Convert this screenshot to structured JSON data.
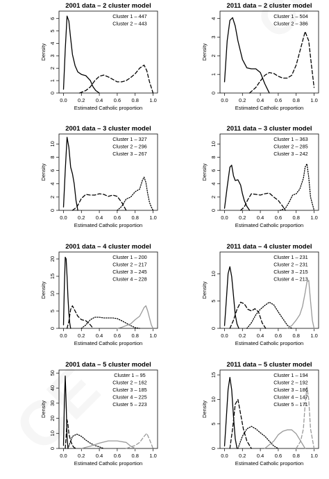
{
  "chart_data": [
    {
      "type": "line",
      "title": "2001 data – 2 cluster model",
      "xlabel": "Estimated Catholic proportion",
      "ylabel": "Density",
      "xlim": [
        -0.05,
        1.05
      ],
      "ylim": [
        0,
        6.6
      ],
      "xticks": [
        0.0,
        0.2,
        0.4,
        0.6,
        0.8,
        1.0
      ],
      "yticks": [
        0,
        1,
        2,
        3,
        4,
        5,
        6
      ],
      "legend_position": "top-right",
      "legend": [
        "Cluster 1 – 447",
        "Cluster 2 – 443"
      ],
      "series": [
        {
          "style": "solid",
          "color": "#000000",
          "x": [
            0.0,
            0.02,
            0.04,
            0.06,
            0.08,
            0.1,
            0.13,
            0.16,
            0.2,
            0.25,
            0.3,
            0.33,
            0.36,
            0.4
          ],
          "y": [
            0.3,
            3.5,
            6.2,
            5.8,
            4.4,
            3.1,
            2.2,
            1.7,
            1.5,
            1.4,
            1.0,
            0.5,
            0.2,
            0.0
          ]
        },
        {
          "style": "dashed",
          "color": "#000000",
          "x": [
            0.18,
            0.25,
            0.3,
            0.35,
            0.4,
            0.45,
            0.5,
            0.55,
            0.6,
            0.65,
            0.7,
            0.75,
            0.8,
            0.85,
            0.9,
            0.93,
            0.96,
            1.0
          ],
          "y": [
            0.0,
            0.2,
            0.5,
            1.0,
            1.35,
            1.45,
            1.3,
            1.1,
            0.9,
            0.9,
            1.0,
            1.25,
            1.55,
            2.0,
            2.25,
            1.8,
            0.9,
            0.0
          ]
        }
      ]
    },
    {
      "type": "line",
      "title": "2011 data – 2 cluster model",
      "xlabel": "Estimated Catholic proportion",
      "ylabel": "Density",
      "xlim": [
        -0.05,
        1.05
      ],
      "ylim": [
        0,
        4.4
      ],
      "xticks": [
        0.0,
        0.2,
        0.4,
        0.6,
        0.8,
        1.0
      ],
      "yticks": [
        0,
        1,
        2,
        3,
        4
      ],
      "legend_position": "top-right",
      "legend": [
        "Cluster 1 – 504",
        "Cluster 2 – 386"
      ],
      "series": [
        {
          "style": "solid",
          "color": "#000000",
          "x": [
            0.0,
            0.03,
            0.06,
            0.09,
            0.12,
            0.15,
            0.2,
            0.25,
            0.3,
            0.35,
            0.4,
            0.45,
            0.5
          ],
          "y": [
            0.6,
            2.8,
            3.9,
            4.05,
            3.6,
            2.8,
            1.8,
            1.35,
            1.3,
            1.3,
            1.1,
            0.5,
            0.0
          ]
        },
        {
          "style": "dashed",
          "color": "#000000",
          "x": [
            0.28,
            0.35,
            0.4,
            0.45,
            0.5,
            0.55,
            0.6,
            0.65,
            0.7,
            0.75,
            0.8,
            0.85,
            0.9,
            0.94,
            0.97,
            1.0
          ],
          "y": [
            0.0,
            0.3,
            0.65,
            0.95,
            1.1,
            1.05,
            0.9,
            0.8,
            0.8,
            0.95,
            1.5,
            2.4,
            3.3,
            2.8,
            1.5,
            0.3
          ]
        }
      ]
    },
    {
      "type": "line",
      "title": "2001 data – 3 cluster model",
      "xlabel": "Estimated Catholic proportion",
      "ylabel": "Density",
      "xlim": [
        -0.05,
        1.05
      ],
      "ylim": [
        0,
        11.5
      ],
      "xticks": [
        0.0,
        0.2,
        0.4,
        0.6,
        0.8,
        1.0
      ],
      "yticks": [
        0,
        2,
        4,
        6,
        8,
        10
      ],
      "legend_position": "top-right",
      "legend": [
        "Cluster 1 – 327",
        "Cluster 2 – 296",
        "Cluster 3 – 267"
      ],
      "series": [
        {
          "style": "solid",
          "color": "#000000",
          "x": [
            0.0,
            0.02,
            0.04,
            0.06,
            0.08,
            0.1,
            0.12,
            0.14,
            0.16
          ],
          "y": [
            0.5,
            6.0,
            11.0,
            9.5,
            6.5,
            5.5,
            4.0,
            1.5,
            0.0
          ]
        },
        {
          "style": "dashed",
          "color": "#000000",
          "x": [
            0.1,
            0.15,
            0.2,
            0.25,
            0.3,
            0.35,
            0.4,
            0.45,
            0.5,
            0.55,
            0.6,
            0.65,
            0.7
          ],
          "y": [
            0.0,
            0.5,
            1.8,
            2.4,
            2.3,
            2.3,
            2.5,
            2.4,
            2.1,
            2.3,
            2.1,
            1.2,
            0.0
          ]
        },
        {
          "style": "dotted",
          "color": "#000000",
          "x": [
            0.6,
            0.65,
            0.7,
            0.75,
            0.8,
            0.85,
            0.88,
            0.9,
            0.92,
            0.94,
            0.96,
            0.98,
            1.0
          ],
          "y": [
            0.0,
            0.6,
            1.7,
            2.0,
            2.8,
            3.2,
            4.5,
            5.0,
            4.2,
            2.5,
            1.2,
            0.5,
            0.0
          ]
        }
      ]
    },
    {
      "type": "line",
      "title": "2011 data – 3 cluster model",
      "xlabel": "Estimated Catholic proportion",
      "ylabel": "Density",
      "xlim": [
        -0.05,
        1.05
      ],
      "ylim": [
        0,
        11.5
      ],
      "xticks": [
        0.0,
        0.2,
        0.4,
        0.6,
        0.8,
        1.0
      ],
      "yticks": [
        0,
        2,
        4,
        6,
        8,
        10
      ],
      "legend_position": "top-right",
      "legend": [
        "Cluster 1 – 363",
        "Cluster 2 – 285",
        "Cluster 3 – 242"
      ],
      "series": [
        {
          "style": "solid",
          "color": "#000000",
          "x": [
            0.0,
            0.03,
            0.06,
            0.08,
            0.1,
            0.12,
            0.15,
            0.18,
            0.2,
            0.22,
            0.25,
            0.28
          ],
          "y": [
            0.3,
            3.5,
            6.5,
            6.8,
            5.2,
            4.5,
            4.6,
            3.8,
            2.5,
            1.5,
            0.6,
            0.0
          ]
        },
        {
          "style": "dashed",
          "color": "#000000",
          "x": [
            0.18,
            0.22,
            0.26,
            0.3,
            0.35,
            0.4,
            0.45,
            0.5,
            0.55,
            0.6,
            0.65,
            0.68
          ],
          "y": [
            0.0,
            0.5,
            1.6,
            2.5,
            2.4,
            2.3,
            2.5,
            2.6,
            2.0,
            1.5,
            0.6,
            0.0
          ]
        },
        {
          "style": "dotted",
          "color": "#000000",
          "x": [
            0.62,
            0.68,
            0.72,
            0.76,
            0.8,
            0.84,
            0.88,
            0.9,
            0.92,
            0.94,
            0.96,
            1.0
          ],
          "y": [
            0.0,
            0.3,
            1.2,
            2.3,
            2.5,
            3.2,
            4.8,
            6.5,
            7.0,
            5.0,
            2.0,
            0.0
          ]
        }
      ]
    },
    {
      "type": "line",
      "title": "2001 data – 4 cluster model",
      "xlabel": "Estimated Catholic proportion",
      "ylabel": "Density",
      "xlim": [
        -0.05,
        1.05
      ],
      "ylim": [
        0,
        22
      ],
      "xticks": [
        0.0,
        0.2,
        0.4,
        0.6,
        0.8,
        1.0
      ],
      "yticks": [
        0,
        5,
        10,
        15,
        20
      ],
      "legend_position": "top-right",
      "legend": [
        "Cluster 1 – 200",
        "Cluster 2 – 217",
        "Cluster 3 – 245",
        "Cluster 4 – 228"
      ],
      "series": [
        {
          "style": "solid",
          "color": "#000000",
          "x": [
            0.0,
            0.01,
            0.02,
            0.03,
            0.04,
            0.05,
            0.06,
            0.07,
            0.08
          ],
          "y": [
            1.0,
            12.0,
            20.5,
            20.0,
            15.0,
            9.0,
            4.5,
            1.5,
            0.0
          ]
        },
        {
          "style": "dashed",
          "color": "#000000",
          "x": [
            0.04,
            0.06,
            0.08,
            0.1,
            0.12,
            0.14,
            0.16,
            0.2,
            0.25,
            0.3,
            0.33
          ],
          "y": [
            0.0,
            2.0,
            5.5,
            6.5,
            5.5,
            4.5,
            3.5,
            2.5,
            2.2,
            1.0,
            0.0
          ]
        },
        {
          "style": "dotted",
          "color": "#000000",
          "x": [
            0.2,
            0.25,
            0.3,
            0.35,
            0.4,
            0.45,
            0.5,
            0.55,
            0.6,
            0.65,
            0.7,
            0.75,
            0.8,
            0.85
          ],
          "y": [
            0.0,
            1.0,
            2.5,
            3.2,
            3.2,
            3.0,
            3.0,
            3.0,
            2.8,
            2.2,
            1.5,
            0.8,
            0.2,
            0.0
          ]
        },
        {
          "style": "solid",
          "color": "#999999",
          "x": [
            0.6,
            0.65,
            0.7,
            0.75,
            0.8,
            0.85,
            0.88,
            0.9,
            0.92,
            0.94,
            0.96,
            0.98,
            1.0
          ],
          "y": [
            0.0,
            0.3,
            0.8,
            1.3,
            2.5,
            3.5,
            5.0,
            6.0,
            6.5,
            5.0,
            3.0,
            1.0,
            0.0
          ]
        }
      ]
    },
    {
      "type": "line",
      "title": "2011 data – 4 cluster model",
      "xlabel": "Estimated Catholic proportion",
      "ylabel": "Density",
      "xlim": [
        -0.05,
        1.05
      ],
      "ylim": [
        0,
        14
      ],
      "xticks": [
        0.0,
        0.2,
        0.4,
        0.6,
        0.8,
        1.0
      ],
      "yticks": [
        0,
        5,
        10
      ],
      "legend_position": "top-right",
      "legend": [
        "Cluster 1 – 231",
        "Cluster 2 – 231",
        "Cluster 3 – 215",
        "Cluster 4 – 213"
      ],
      "series": [
        {
          "style": "solid",
          "color": "#000000",
          "x": [
            0.0,
            0.02,
            0.04,
            0.06,
            0.08,
            0.1,
            0.12,
            0.14,
            0.16
          ],
          "y": [
            0.5,
            5.0,
            10.0,
            11.3,
            9.5,
            6.0,
            2.5,
            0.8,
            0.0
          ]
        },
        {
          "style": "dashed",
          "color": "#000000",
          "x": [
            0.06,
            0.1,
            0.14,
            0.18,
            0.22,
            0.26,
            0.3,
            0.34,
            0.38,
            0.42,
            0.46
          ],
          "y": [
            0.0,
            1.5,
            3.5,
            4.8,
            4.5,
            3.5,
            3.2,
            3.6,
            3.0,
            1.0,
            0.0
          ]
        },
        {
          "style": "dotted",
          "color": "#000000",
          "x": [
            0.25,
            0.3,
            0.35,
            0.4,
            0.45,
            0.5,
            0.55,
            0.6,
            0.65,
            0.7,
            0.75
          ],
          "y": [
            0.0,
            1.0,
            2.5,
            3.5,
            4.2,
            4.8,
            4.3,
            3.0,
            1.8,
            0.6,
            0.0
          ]
        },
        {
          "style": "solid",
          "color": "#999999",
          "x": [
            0.7,
            0.75,
            0.8,
            0.84,
            0.87,
            0.9,
            0.92,
            0.94,
            0.96,
            0.98,
            1.0
          ],
          "y": [
            0.0,
            0.5,
            1.5,
            2.5,
            4.0,
            6.5,
            8.5,
            8.8,
            5.0,
            1.5,
            0.0
          ]
        }
      ]
    },
    {
      "type": "line",
      "title": "2001 data – 5 cluster model",
      "xlabel": "Estimated Catholic proportion",
      "ylabel": "Density",
      "xlim": [
        -0.05,
        1.05
      ],
      "ylim": [
        0,
        52
      ],
      "xticks": [
        0.0,
        0.2,
        0.4,
        0.6,
        0.8,
        1.0
      ],
      "yticks": [
        0,
        10,
        20,
        30,
        40,
        50
      ],
      "legend_position": "top-right",
      "legend": [
        "Cluster 1 – 95",
        "Cluster 2 – 162",
        "Cluster 3 – 185",
        "Cluster 4 – 225",
        "Cluster 5 – 223"
      ],
      "series": [
        {
          "style": "solid",
          "color": "#000000",
          "x": [
            0.0,
            0.01,
            0.02,
            0.03,
            0.04,
            0.05
          ],
          "y": [
            2.0,
            30.0,
            48.0,
            30.0,
            8.0,
            0.0
          ]
        },
        {
          "style": "dashed",
          "color": "#000000",
          "x": [
            0.02,
            0.03,
            0.04,
            0.05,
            0.06,
            0.08,
            0.1,
            0.12,
            0.15
          ],
          "y": [
            0.0,
            8.0,
            19.0,
            16.0,
            10.0,
            5.0,
            2.0,
            0.5,
            0.0
          ]
        },
        {
          "style": "dotted",
          "color": "#000000",
          "x": [
            0.05,
            0.1,
            0.15,
            0.2,
            0.25,
            0.3,
            0.35,
            0.4,
            0.45
          ],
          "y": [
            0.0,
            8.0,
            9.5,
            8.0,
            5.5,
            3.5,
            2.0,
            1.0,
            0.0
          ]
        },
        {
          "style": "solid",
          "color": "#999999",
          "x": [
            0.2,
            0.3,
            0.4,
            0.5,
            0.6,
            0.7,
            0.75,
            0.8
          ],
          "y": [
            0.0,
            1.5,
            3.5,
            5.0,
            5.0,
            4.0,
            1.5,
            0.0
          ]
        },
        {
          "style": "dashed",
          "color": "#999999",
          "x": [
            0.7,
            0.8,
            0.85,
            0.9,
            0.93,
            0.96,
            1.0
          ],
          "y": [
            0.0,
            2.0,
            4.0,
            8.0,
            10.0,
            6.0,
            0.0
          ]
        }
      ]
    },
    {
      "type": "line",
      "title": "2011 data – 5 cluster model",
      "xlabel": "Estimated Catholic proportion",
      "ylabel": "Density",
      "xlim": [
        -0.05,
        1.05
      ],
      "ylim": [
        0,
        16
      ],
      "xticks": [
        0.0,
        0.2,
        0.4,
        0.6,
        0.8,
        1.0
      ],
      "yticks": [
        0,
        5,
        10,
        15
      ],
      "legend_position": "top-right",
      "legend": [
        "Cluster 1 – 194",
        "Cluster 2 – 192",
        "Cluster 3 – 186",
        "Cluster 4 – 147",
        "Cluster 5 – 171"
      ],
      "series": [
        {
          "style": "solid",
          "color": "#000000",
          "x": [
            0.0,
            0.02,
            0.04,
            0.06,
            0.08,
            0.1,
            0.12,
            0.14
          ],
          "y": [
            0.5,
            6.0,
            12.0,
            14.5,
            12.0,
            6.5,
            2.0,
            0.0
          ]
        },
        {
          "style": "dashed",
          "color": "#000000",
          "x": [
            0.06,
            0.09,
            0.12,
            0.15,
            0.18,
            0.21,
            0.25,
            0.3
          ],
          "y": [
            0.0,
            4.0,
            9.0,
            10.0,
            7.0,
            4.0,
            1.5,
            0.0
          ]
        },
        {
          "style": "dotted",
          "color": "#000000",
          "x": [
            0.15,
            0.2,
            0.25,
            0.3,
            0.35,
            0.4,
            0.45,
            0.5,
            0.55,
            0.6
          ],
          "y": [
            0.0,
            2.5,
            4.0,
            4.5,
            4.0,
            3.2,
            2.5,
            1.5,
            0.5,
            0.0
          ]
        },
        {
          "style": "solid",
          "color": "#999999",
          "x": [
            0.45,
            0.55,
            0.6,
            0.65,
            0.7,
            0.75,
            0.8,
            0.85,
            0.9
          ],
          "y": [
            0.0,
            1.5,
            2.8,
            3.5,
            3.8,
            3.8,
            3.0,
            1.5,
            0.0
          ]
        },
        {
          "style": "dashed",
          "color": "#999999",
          "x": [
            0.8,
            0.85,
            0.88,
            0.9,
            0.92,
            0.94,
            0.96,
            1.0
          ],
          "y": [
            0.0,
            1.5,
            4.0,
            9.0,
            12.5,
            10.0,
            4.0,
            0.0
          ]
        }
      ]
    }
  ]
}
